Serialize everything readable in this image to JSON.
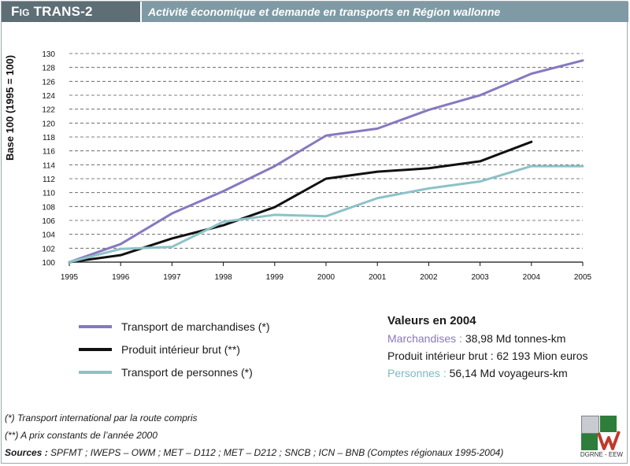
{
  "header": {
    "code_prefix": "Fig",
    "code": "TRANS-2",
    "title": "Activité économique et demande en transports en Région wallonne"
  },
  "chart_data": {
    "type": "line",
    "ylabel": "Base 100 (1995 = 100)",
    "xlabel": "",
    "x": [
      "1995",
      "1996",
      "1997",
      "1998",
      "1999",
      "2000",
      "2001",
      "2002",
      "2003",
      "2004",
      "2005"
    ],
    "ylim": [
      100,
      130
    ],
    "yticks": [
      100,
      102,
      104,
      106,
      108,
      110,
      112,
      114,
      116,
      118,
      120,
      122,
      124,
      126,
      128,
      130
    ],
    "grid": "horizontal-dashed",
    "series": [
      {
        "name": "Transport de marchandises (*)",
        "color": "#8878c0",
        "values": [
          100,
          102.6,
          107,
          110.2,
          113.8,
          118.2,
          119.2,
          121.9,
          124,
          127.1,
          129
        ]
      },
      {
        "name": "Produit intérieur brut (**)",
        "color": "#111111",
        "values": [
          100,
          101,
          103.4,
          105.3,
          107.9,
          112,
          113,
          113.5,
          114.5,
          117.3,
          null
        ]
      },
      {
        "name": "Transport de personnes (*)",
        "color": "#8cc2c8",
        "values": [
          100,
          101.9,
          102.2,
          105.8,
          106.8,
          106.6,
          109.2,
          110.6,
          111.6,
          113.8,
          113.8
        ]
      }
    ]
  },
  "values_box": {
    "title": "Valeurs en 2004",
    "lines": [
      {
        "label": "Marchandises :",
        "value": " 38,98 Md tonnes-km",
        "label_color": "#8878c0"
      },
      {
        "label": "Produit intérieur brut :",
        "value": " 62 193 Mion euros",
        "label_color": "#1a1a1a"
      },
      {
        "label": "Personnes :",
        "value": " 56,14 Md voyageurs-km",
        "label_color": "#7fb8c2"
      }
    ]
  },
  "notes": {
    "note1": "(*) Transport international par la route compris",
    "note2": "(**) A prix constants de l’année 2000",
    "sources_label": "Sources :",
    "sources_text": " SPFMT ; IWEPS – OWM ; MET – D112 ; MET – D212 ; SNCB ; ICN – BNB (Comptes régionaux 1995-2004)"
  },
  "logo": {
    "text": "DGRNE - EEW"
  }
}
